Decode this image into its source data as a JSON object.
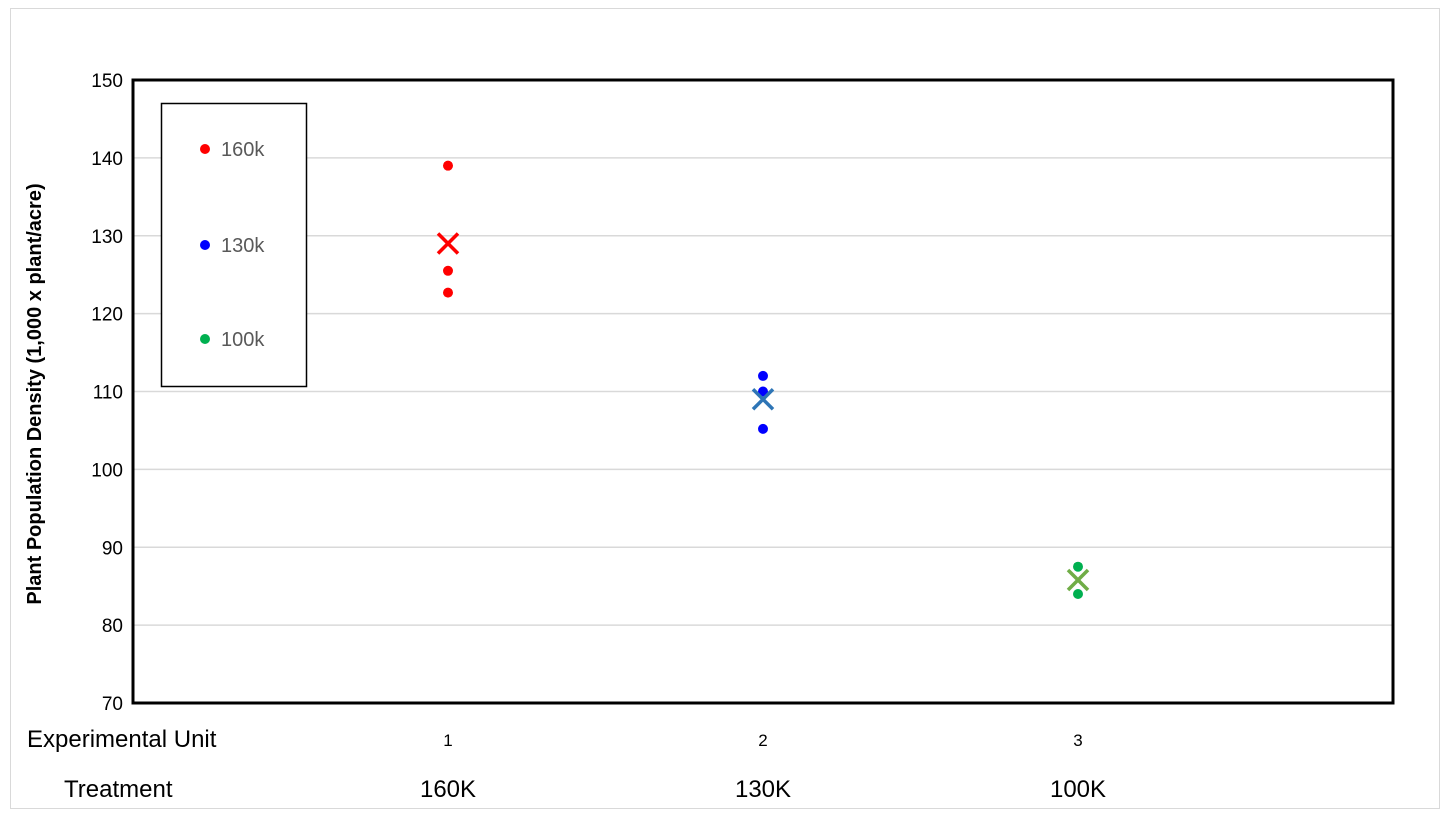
{
  "chart_data": {
    "type": "scatter",
    "ylabel": "Plant Population Density (1,000 x plant/acre)",
    "ylim": [
      70,
      150
    ],
    "yticks": [
      70,
      80,
      90,
      100,
      110,
      120,
      130,
      140,
      150
    ],
    "xlim": [
      0,
      4
    ],
    "grid": true,
    "legend_position": "top-left",
    "row_labels": {
      "unit": "Experimental Unit",
      "treatment": "Treatment"
    },
    "experimental_units": [
      "1",
      "2",
      "3"
    ],
    "treatments": [
      "160K",
      "130K",
      "100K"
    ],
    "series": [
      {
        "name": "160k",
        "color": "#ff0000",
        "x": [
          1,
          1,
          1
        ],
        "y": [
          139,
          125.5,
          122.7
        ],
        "mean": 129,
        "mean_color": "#ff0000"
      },
      {
        "name": "130k",
        "color": "#0000ff",
        "x": [
          2,
          2,
          2
        ],
        "y": [
          112,
          110,
          105.2
        ],
        "mean": 109,
        "mean_color": "#2e75b6"
      },
      {
        "name": "100k",
        "color": "#00b050",
        "x": [
          3,
          3
        ],
        "y": [
          87.5,
          84
        ],
        "mean": 85.8,
        "mean_color": "#70ad47"
      }
    ]
  }
}
